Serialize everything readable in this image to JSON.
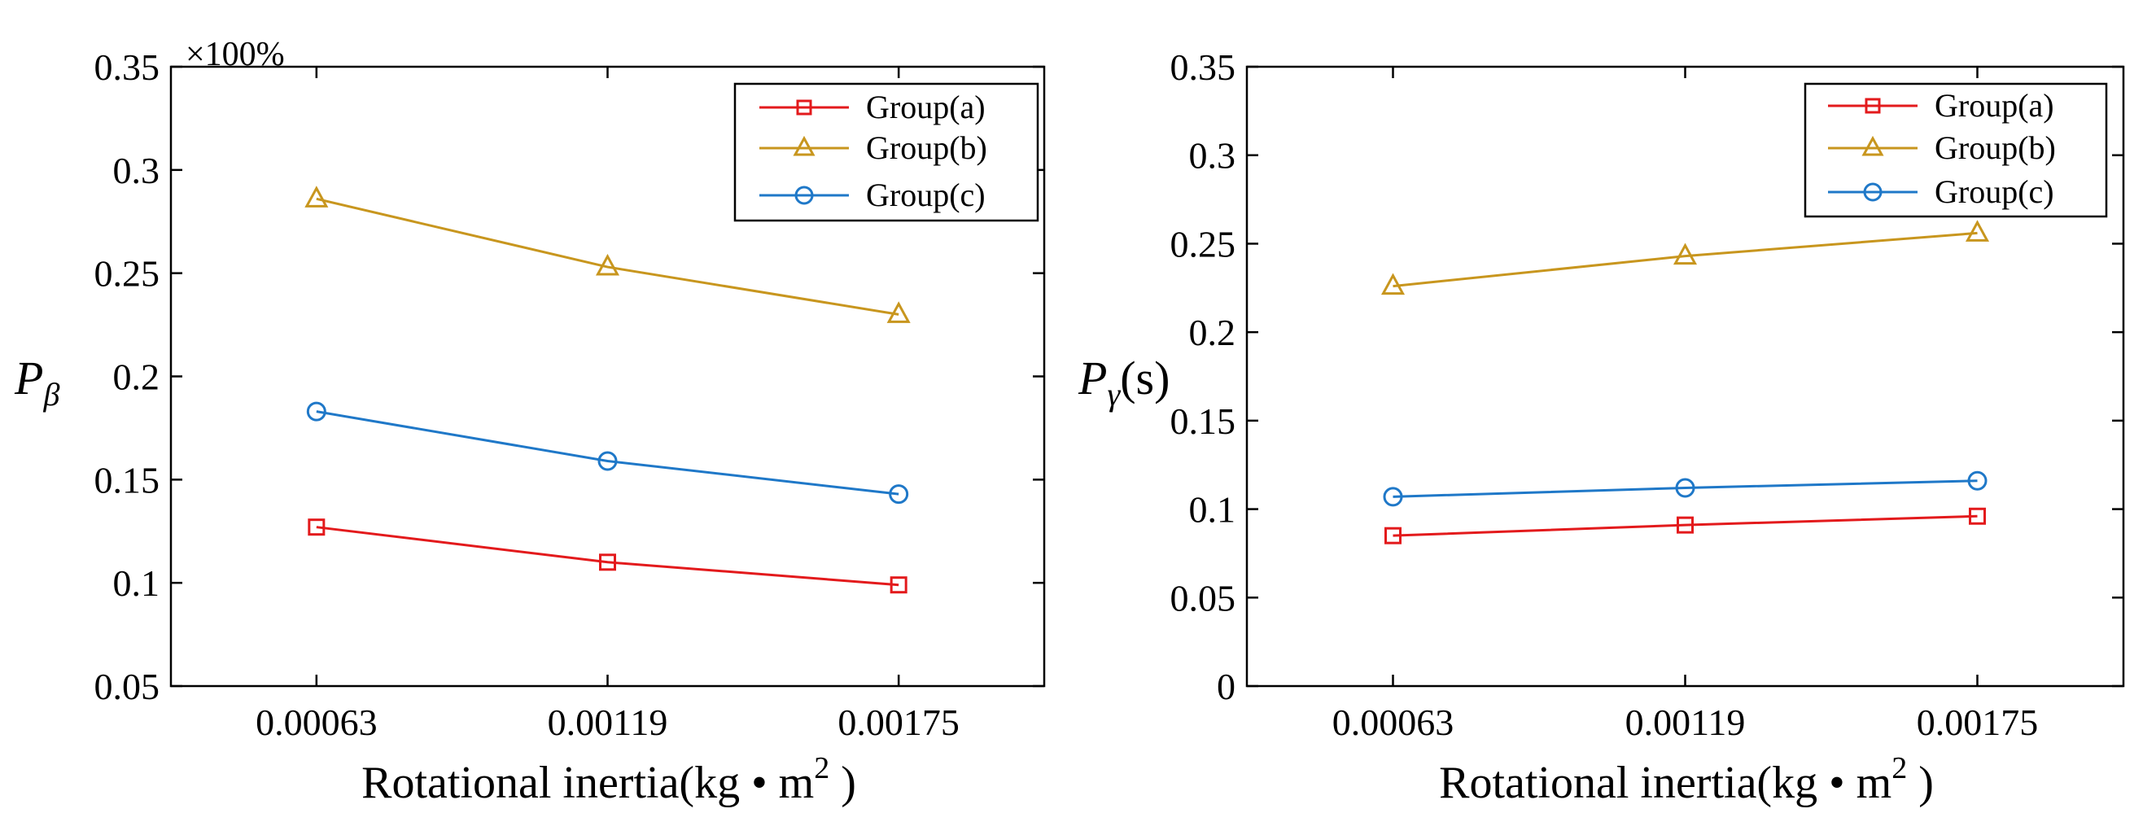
{
  "colors": {
    "group_a": "#E31A1C",
    "group_b": "#C8961E",
    "group_c": "#1F78C8",
    "axes": "#000000",
    "background": "#FFFFFF"
  },
  "chart_data": [
    {
      "type": "line",
      "title": "",
      "xlabel": "Rotational inertia(kg • m",
      "xlabel_sup": "2",
      "xlabel_close": " )",
      "ylabel": "P",
      "ylabel_sub": "β",
      "ylabel_unit": "",
      "multiplier": "×100%",
      "categories": [
        "0.00063",
        "0.00119",
        "0.00175"
      ],
      "xlim": [
        -0.5,
        2.5
      ],
      "ylim": [
        0.05,
        0.35
      ],
      "yticks": [
        0.05,
        0.1,
        0.15,
        0.2,
        0.25,
        0.3,
        0.35
      ],
      "ytick_labels": [
        "0.05",
        "0.1",
        "0.15",
        "0.2",
        "0.25",
        "0.3",
        "0.35"
      ],
      "grid": false,
      "legend_position": "top-right",
      "series": [
        {
          "name": "Group(a)",
          "marker": "square",
          "color_key": "group_a",
          "values": [
            0.127,
            0.11,
            0.099
          ]
        },
        {
          "name": "Group(b)",
          "marker": "triangle",
          "color_key": "group_b",
          "values": [
            0.286,
            0.253,
            0.23
          ]
        },
        {
          "name": "Group(c)",
          "marker": "circle",
          "color_key": "group_c",
          "values": [
            0.183,
            0.159,
            0.143
          ]
        }
      ]
    },
    {
      "type": "line",
      "title": "",
      "xlabel": "Rotational inertia(kg • m",
      "xlabel_sup": "2",
      "xlabel_close": " )",
      "ylabel": "P",
      "ylabel_sub": "γ",
      "ylabel_unit": "(s)",
      "multiplier": "",
      "categories": [
        "0.00063",
        "0.00119",
        "0.00175"
      ],
      "xlim": [
        -0.5,
        2.5
      ],
      "ylim": [
        0,
        0.35
      ],
      "yticks": [
        0,
        0.05,
        0.1,
        0.15,
        0.2,
        0.25,
        0.3,
        0.35
      ],
      "ytick_labels": [
        "0",
        "0.05",
        "0.1",
        "0.15",
        "0.2",
        "0.25",
        "0.3",
        "0.35"
      ],
      "grid": false,
      "legend_position": "top-right",
      "series": [
        {
          "name": "Group(a)",
          "marker": "square",
          "color_key": "group_a",
          "values": [
            0.085,
            0.091,
            0.096
          ]
        },
        {
          "name": "Group(b)",
          "marker": "triangle",
          "color_key": "group_b",
          "values": [
            0.226,
            0.243,
            0.256
          ]
        },
        {
          "name": "Group(c)",
          "marker": "circle",
          "color_key": "group_c",
          "values": [
            0.107,
            0.112,
            0.116
          ]
        }
      ]
    }
  ]
}
